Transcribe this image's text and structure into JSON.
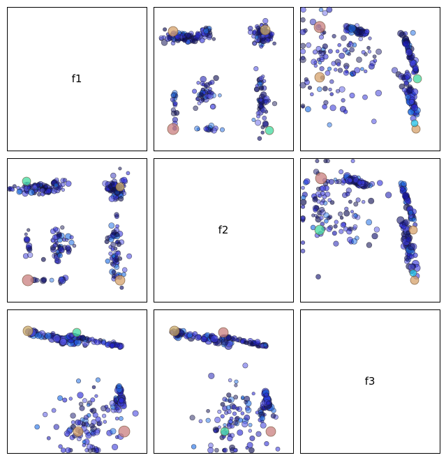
{
  "chart_data": {
    "type": "scatter",
    "subtype": "scatter-matrix",
    "variables": [
      "f1",
      "f2",
      "f3"
    ],
    "grid": false,
    "axes_ticks": false,
    "point_edge_color": "#1a1a2e",
    "point_fill_alpha": 0.45,
    "panels": [
      {
        "row": 0,
        "col": 0,
        "diagonal": true,
        "label": "f1"
      },
      {
        "row": 0,
        "col": 1,
        "x_var": "f2",
        "y_var": "f1",
        "xlim": [
          0,
          1
        ],
        "ylim": [
          0,
          1
        ],
        "clusters": [
          {
            "cx": 0.21,
            "cy": 0.79,
            "sx": 0.08,
            "sy": 0.018,
            "n": 80
          },
          {
            "cx": 0.38,
            "cy": 0.82,
            "sx": 0.03,
            "sy": 0.02,
            "n": 20
          },
          {
            "cx": 0.78,
            "cy": 0.81,
            "sx": 0.035,
            "sy": 0.04,
            "n": 70
          },
          {
            "cx": 0.38,
            "cy": 0.4,
            "sx": 0.04,
            "sy": 0.05,
            "n": 45
          },
          {
            "cx": 0.78,
            "cy": 0.34,
            "sx": 0.025,
            "sy": 0.11,
            "n": 55
          },
          {
            "cx": 0.15,
            "cy": 0.31,
            "sx": 0.008,
            "sy": 0.09,
            "n": 16
          },
          {
            "cx": 0.39,
            "cy": 0.15,
            "sx": 0.05,
            "sy": 0.012,
            "n": 14
          }
        ],
        "highlights": [
          {
            "x": 0.14,
            "y": 0.83,
            "size": 7,
            "color": "#d6a26b"
          },
          {
            "x": 0.14,
            "y": 0.15,
            "size": 8,
            "color": "#c97f7f"
          },
          {
            "x": 0.8,
            "y": 0.84,
            "size": 7,
            "color": "#c9a968"
          },
          {
            "x": 0.83,
            "y": 0.14,
            "size": 6,
            "color": "#41d9a0"
          }
        ]
      },
      {
        "row": 0,
        "col": 2,
        "x_var": "f3",
        "y_var": "f1",
        "xlim": [
          0,
          1
        ],
        "ylim": [
          0,
          1
        ],
        "clusters": [
          {
            "cx": 0.28,
            "cy": 0.58,
            "sx": 0.17,
            "sy": 0.15,
            "n": 95
          },
          {
            "cx": 0.14,
            "cy": 0.76,
            "sx": 0.02,
            "sy": 0.12,
            "n": 16
          }
        ],
        "streaks": [
          {
            "x0": 0.33,
            "y0": 0.86,
            "x1": 0.48,
            "y1": 0.81,
            "n": 45,
            "size": 5,
            "spread": 0.008
          },
          {
            "x0": 0.74,
            "y0": 0.81,
            "x1": 0.84,
            "y1": 0.53,
            "n": 50,
            "size": 4.5,
            "spread": 0.008
          },
          {
            "x0": 0.74,
            "y0": 0.55,
            "x1": 0.83,
            "y1": 0.24,
            "n": 45,
            "size": 5,
            "spread": 0.018
          }
        ],
        "highlights": [
          {
            "x": 0.14,
            "y": 0.86,
            "size": 8,
            "color": "#c97f7f"
          },
          {
            "x": 0.14,
            "y": 0.51,
            "size": 7,
            "color": "#d6a26b"
          },
          {
            "x": 0.84,
            "y": 0.5,
            "size": 6,
            "color": "#41d9a0"
          },
          {
            "x": 0.83,
            "y": 0.15,
            "size": 6,
            "color": "#d6a26b"
          },
          {
            "x": 0.82,
            "y": 0.19,
            "size": 5,
            "color": "#1ec0e8"
          }
        ]
      },
      {
        "row": 1,
        "col": 0,
        "x_var": "f1",
        "y_var": "f2",
        "xlim": [
          0,
          1
        ],
        "ylim": [
          0,
          1
        ],
        "clusters": [
          {
            "cx": 0.21,
            "cy": 0.79,
            "sx": 0.08,
            "sy": 0.018,
            "n": 80
          },
          {
            "cx": 0.38,
            "cy": 0.82,
            "sx": 0.03,
            "sy": 0.02,
            "n": 20
          },
          {
            "cx": 0.78,
            "cy": 0.8,
            "sx": 0.035,
            "sy": 0.04,
            "n": 70
          },
          {
            "cx": 0.39,
            "cy": 0.4,
            "sx": 0.04,
            "sy": 0.05,
            "n": 45
          },
          {
            "cx": 0.78,
            "cy": 0.33,
            "sx": 0.025,
            "sy": 0.11,
            "n": 60
          },
          {
            "cx": 0.15,
            "cy": 0.4,
            "sx": 0.01,
            "sy": 0.04,
            "n": 14
          },
          {
            "cx": 0.39,
            "cy": 0.15,
            "sx": 0.02,
            "sy": 0.01,
            "n": 10
          },
          {
            "cx": 0.28,
            "cy": 0.15,
            "sx": 0.06,
            "sy": 0.004,
            "n": 7
          }
        ],
        "highlights": [
          {
            "x": 0.14,
            "y": 0.84,
            "size": 6,
            "color": "#41d9a0"
          },
          {
            "x": 0.81,
            "y": 0.8,
            "size": 6,
            "color": "#c9a968"
          },
          {
            "x": 0.15,
            "y": 0.15,
            "size": 8,
            "color": "#c97f7f"
          },
          {
            "x": 0.81,
            "y": 0.15,
            "size": 7,
            "color": "#d6a26b"
          }
        ]
      },
      {
        "row": 1,
        "col": 1,
        "diagonal": true,
        "label": "f2"
      },
      {
        "row": 1,
        "col": 2,
        "x_var": "f3",
        "y_var": "f2",
        "xlim": [
          0,
          1
        ],
        "ylim": [
          0,
          1
        ],
        "clusters": [
          {
            "cx": 0.28,
            "cy": 0.63,
            "sx": 0.17,
            "sy": 0.15,
            "n": 95
          },
          {
            "cx": 0.14,
            "cy": 0.66,
            "sx": 0.02,
            "sy": 0.14,
            "n": 18
          }
        ],
        "streaks": [
          {
            "x0": 0.33,
            "y0": 0.86,
            "x1": 0.48,
            "y1": 0.81,
            "n": 45,
            "size": 5,
            "spread": 0.008
          },
          {
            "x0": 0.73,
            "y0": 0.82,
            "x1": 0.82,
            "y1": 0.52,
            "n": 45,
            "size": 4.5,
            "spread": 0.008
          },
          {
            "x0": 0.74,
            "y0": 0.56,
            "x1": 0.82,
            "y1": 0.19,
            "n": 50,
            "size": 5,
            "spread": 0.018
          }
        ],
        "highlights": [
          {
            "x": 0.15,
            "y": 0.86,
            "size": 8,
            "color": "#c97f7f"
          },
          {
            "x": 0.14,
            "y": 0.5,
            "size": 7,
            "color": "#41d9a0"
          },
          {
            "x": 0.81,
            "y": 0.5,
            "size": 6,
            "color": "#d6a26b"
          },
          {
            "x": 0.82,
            "y": 0.15,
            "size": 6,
            "color": "#d6a26b"
          },
          {
            "x": 0.81,
            "y": 0.2,
            "size": 5,
            "color": "#1ec0e8"
          }
        ]
      },
      {
        "row": 2,
        "col": 0,
        "x_var": "f1",
        "y_var": "f3",
        "xlim": [
          0,
          1
        ],
        "ylim": [
          0,
          1
        ],
        "clusters": [
          {
            "cx": 0.56,
            "cy": 0.2,
            "sx": 0.13,
            "sy": 0.13,
            "n": 90
          },
          {
            "cx": 0.79,
            "cy": 0.33,
            "sx": 0.015,
            "sy": 0.03,
            "n": 18
          }
        ],
        "streaks": [
          {
            "x0": 0.14,
            "y0": 0.84,
            "x1": 0.55,
            "y1": 0.77,
            "n": 55,
            "size": 5,
            "spread": 0.012
          },
          {
            "x0": 0.46,
            "y0": 0.82,
            "x1": 0.82,
            "y1": 0.74,
            "n": 45,
            "size": 4,
            "spread": 0.006
          },
          {
            "x0": 0.8,
            "y0": 0.46,
            "x1": 0.83,
            "y1": 0.32,
            "n": 28,
            "size": 5,
            "spread": 0.006
          }
        ],
        "highlights": [
          {
            "x": 0.15,
            "y": 0.85,
            "size": 7,
            "color": "#c9a968"
          },
          {
            "x": 0.5,
            "y": 0.84,
            "size": 6,
            "color": "#41d9a0"
          },
          {
            "x": 0.51,
            "y": 0.15,
            "size": 7,
            "color": "#d6a26b"
          },
          {
            "x": 0.84,
            "y": 0.15,
            "size": 8,
            "color": "#c97f7f"
          }
        ]
      },
      {
        "row": 2,
        "col": 1,
        "x_var": "f2",
        "y_var": "f3",
        "xlim": [
          0,
          1
        ],
        "ylim": [
          0,
          1
        ],
        "clusters": [
          {
            "cx": 0.56,
            "cy": 0.2,
            "sx": 0.13,
            "sy": 0.13,
            "n": 90
          },
          {
            "cx": 0.78,
            "cy": 0.3,
            "sx": 0.015,
            "sy": 0.04,
            "n": 18
          }
        ],
        "streaks": [
          {
            "x0": 0.14,
            "y0": 0.84,
            "x1": 0.55,
            "y1": 0.77,
            "n": 55,
            "size": 5,
            "spread": 0.012
          },
          {
            "x0": 0.46,
            "y0": 0.82,
            "x1": 0.82,
            "y1": 0.74,
            "n": 45,
            "size": 4,
            "spread": 0.006
          },
          {
            "x0": 0.8,
            "y0": 0.44,
            "x1": 0.83,
            "y1": 0.3,
            "n": 28,
            "size": 5,
            "spread": 0.006
          }
        ],
        "highlights": [
          {
            "x": 0.15,
            "y": 0.85,
            "size": 7,
            "color": "#c9a968"
          },
          {
            "x": 0.5,
            "y": 0.84,
            "size": 7,
            "color": "#c97f7f"
          },
          {
            "x": 0.51,
            "y": 0.15,
            "size": 6,
            "color": "#41d9a0"
          },
          {
            "x": 0.84,
            "y": 0.15,
            "size": 7,
            "color": "#c97f7f"
          }
        ]
      },
      {
        "row": 2,
        "col": 2,
        "diagonal": true,
        "label": "f3"
      }
    ],
    "palette": [
      "#14146e",
      "#1b1bb3",
      "#2a2ad6",
      "#3d3de0",
      "#5a5ae6",
      "#1f6fe6",
      "#0a0a50"
    ]
  }
}
